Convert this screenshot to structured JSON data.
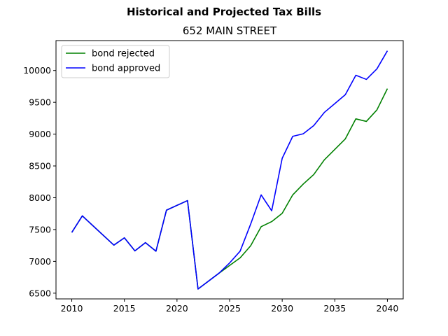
{
  "chart_data": {
    "type": "line",
    "suptitle": "Historical and Projected Tax Bills",
    "title": "652 MAIN STREET",
    "xlabel": "",
    "ylabel": "",
    "xlim": [
      2008.5,
      2041.5
    ],
    "ylim": [
      6410,
      10470
    ],
    "xticks": [
      2010,
      2015,
      2020,
      2025,
      2030,
      2035,
      2040
    ],
    "yticks": [
      6500,
      7000,
      7500,
      8000,
      8500,
      9000,
      9500,
      10000
    ],
    "grid": false,
    "legend_position": "top-left",
    "series": [
      {
        "name": "bond rejected",
        "color": "#008000",
        "x": [
          2010,
          2011,
          2014,
          2015,
          2016,
          2017,
          2018,
          2019,
          2021,
          2022,
          2024,
          2025,
          2026,
          2027,
          2028,
          2029,
          2030,
          2031,
          2032,
          2033,
          2034,
          2035,
          2036,
          2037,
          2038,
          2039,
          2040
        ],
        "y": [
          7455,
          7715,
          7255,
          7370,
          7165,
          7295,
          7160,
          7805,
          7955,
          6565,
          6815,
          6935,
          7055,
          7245,
          7545,
          7625,
          7755,
          8045,
          8215,
          8365,
          8595,
          8760,
          8925,
          9240,
          9200,
          9380,
          9715
        ]
      },
      {
        "name": "bond approved",
        "color": "#0000ff",
        "x": [
          2010,
          2011,
          2014,
          2015,
          2016,
          2017,
          2018,
          2019,
          2021,
          2022,
          2024,
          2025,
          2026,
          2027,
          2028,
          2029,
          2030,
          2031,
          2032,
          2033,
          2034,
          2035,
          2036,
          2037,
          2038,
          2039,
          2040
        ],
        "y": [
          7455,
          7715,
          7255,
          7370,
          7165,
          7295,
          7160,
          7805,
          7955,
          6565,
          6815,
          6975,
          7160,
          7585,
          8045,
          7795,
          8620,
          8965,
          9005,
          9135,
          9340,
          9480,
          9620,
          9925,
          9860,
          10025,
          10310
        ]
      }
    ]
  }
}
